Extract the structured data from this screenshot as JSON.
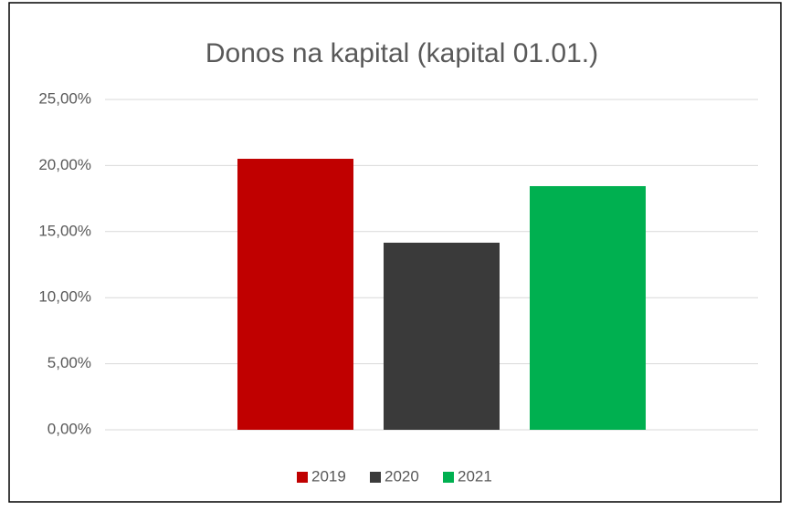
{
  "chart_data": {
    "type": "bar",
    "title": "Donos na kapital (kapital 01.01.)",
    "categories": [
      null
    ],
    "series": [
      {
        "name": "2019",
        "color": "#c00000",
        "values": [
          20.51
        ]
      },
      {
        "name": "2020",
        "color": "#3a3a3a",
        "values": [
          14.16
        ]
      },
      {
        "name": "2021",
        "color": "#00b050",
        "values": [
          18.44
        ]
      }
    ],
    "ylim": [
      0,
      25
    ],
    "yticks": [
      {
        "value": 0,
        "label": "0,00%"
      },
      {
        "value": 5,
        "label": "5,00%"
      },
      {
        "value": 10,
        "label": "10,00%"
      },
      {
        "value": 15,
        "label": "15,00%"
      },
      {
        "value": 20,
        "label": "20,00%"
      },
      {
        "value": 25,
        "label": "25,00%"
      }
    ],
    "grid": true,
    "legend": "bottom"
  }
}
